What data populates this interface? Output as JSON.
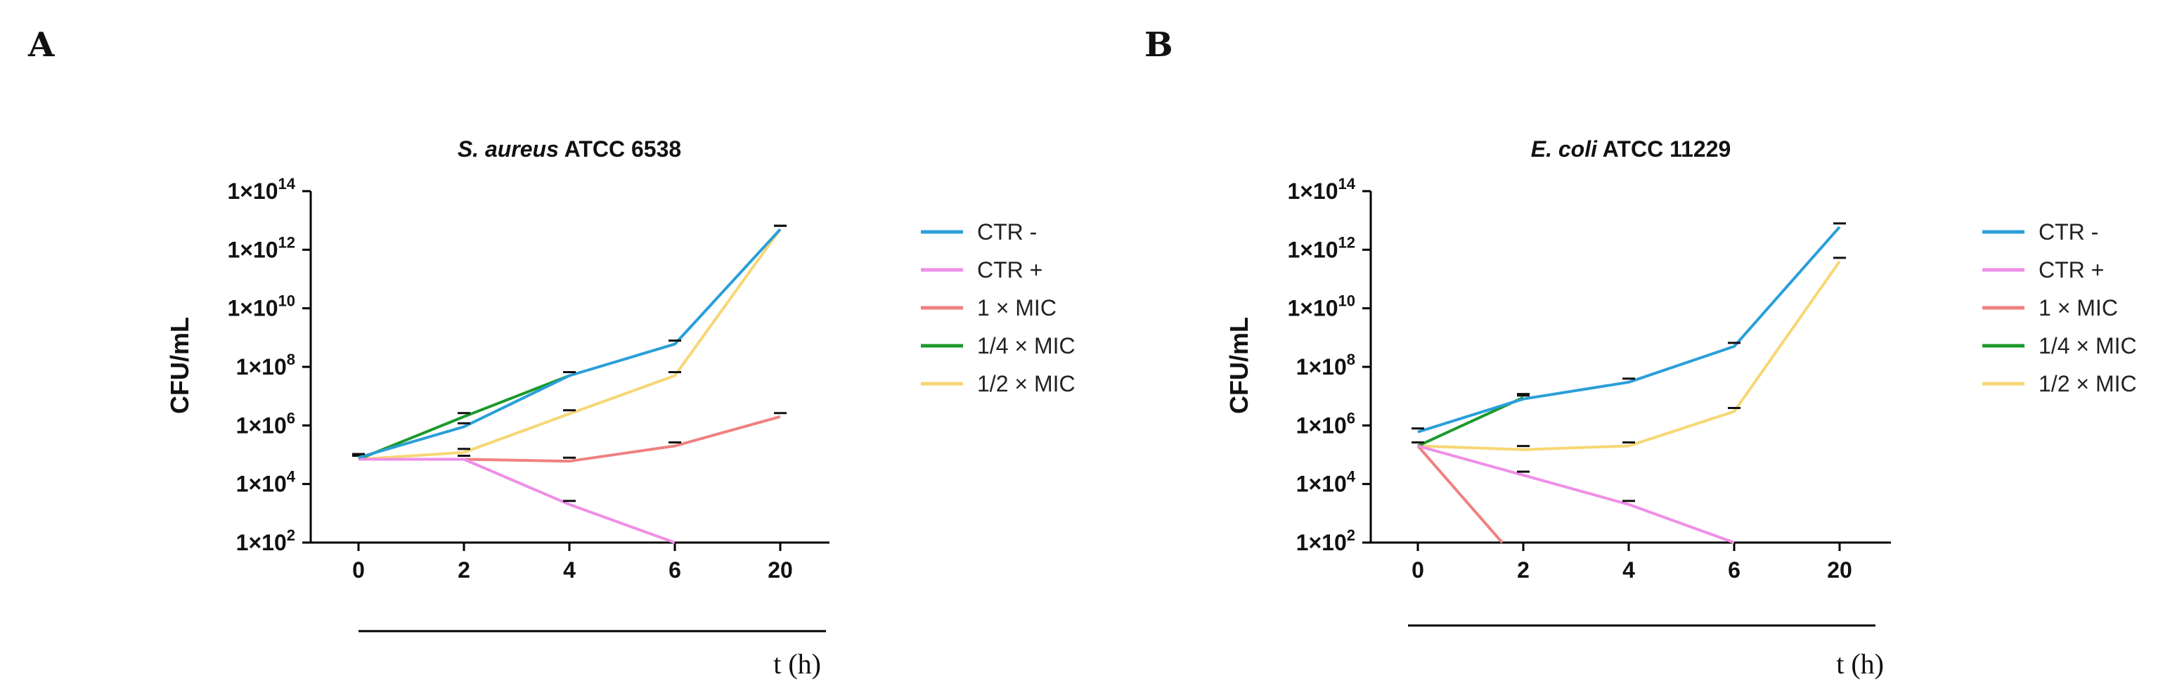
{
  "panel_labels": [
    "A",
    "B"
  ],
  "chart_data": [
    {
      "type": "line",
      "panel": "A",
      "title_italic": "S. aureus",
      "title_rest": " ATCC 6538",
      "xlabel": "t (h)",
      "ylabel": "CFU/mL",
      "yscale": "log",
      "ylim": [
        100,
        100000000000000
      ],
      "y_ticks": [
        {
          "base": "1×10",
          "exp": "2"
        },
        {
          "base": "1×10",
          "exp": "4"
        },
        {
          "base": "1×10",
          "exp": "6"
        },
        {
          "base": "1×10",
          "exp": "8"
        },
        {
          "base": "1×10",
          "exp": "10"
        },
        {
          "base": "1×10",
          "exp": "12"
        },
        {
          "base": "1×10",
          "exp": "14"
        }
      ],
      "categories": [
        "0",
        "2",
        "4",
        "6",
        "20"
      ],
      "series": [
        {
          "name": "CTR -",
          "color": "#2a9fd8",
          "values": [
            80000,
            900000,
            50000000,
            600000000,
            5000000000000
          ]
        },
        {
          "name": "CTR +",
          "color": "#ef8fe6",
          "values": [
            70000,
            70000,
            2000,
            100,
            null
          ]
        },
        {
          "name": "1 × MIC",
          "color": "#f08080",
          "values": [
            70000,
            70000,
            60000,
            200000,
            2000000
          ]
        },
        {
          "name": "1/4 × MIC",
          "color": "#1a9a2a",
          "values": [
            70000,
            2000000,
            50000000,
            null,
            null
          ]
        },
        {
          "name": "1/2 × MIC",
          "color": "#f7d774",
          "values": [
            70000,
            120000,
            2500000,
            50000000,
            5000000000000
          ]
        }
      ],
      "legend_position": "right"
    },
    {
      "type": "line",
      "panel": "B",
      "title_italic": "E. coli",
      "title_rest": " ATCC 11229",
      "xlabel": "t (h)",
      "ylabel": "CFU/mL",
      "yscale": "log",
      "ylim": [
        100,
        100000000000000
      ],
      "y_ticks": [
        {
          "base": "1×10",
          "exp": "2"
        },
        {
          "base": "1×10",
          "exp": "4"
        },
        {
          "base": "1×10",
          "exp": "6"
        },
        {
          "base": "1×10",
          "exp": "8"
        },
        {
          "base": "1×10",
          "exp": "10"
        },
        {
          "base": "1×10",
          "exp": "12"
        },
        {
          "base": "1×10",
          "exp": "14"
        }
      ],
      "categories": [
        "0",
        "2",
        "4",
        "6",
        "20"
      ],
      "series": [
        {
          "name": "CTR -",
          "color": "#2a9fd8",
          "values": [
            600000,
            8000000,
            30000000,
            500000000,
            6000000000000
          ]
        },
        {
          "name": "CTR +",
          "color": "#ef8fe6",
          "values": [
            200000,
            20000,
            2000,
            100,
            null
          ]
        },
        {
          "name": "1 × MIC",
          "color": "#f08080",
          "values": [
            200000,
            100,
            null,
            null,
            null
          ],
          "x_override": [
            0,
            0.8,
            null,
            null,
            null
          ]
        },
        {
          "name": "1/4 × MIC",
          "color": "#1a9a2a",
          "values": [
            200000,
            9000000,
            null,
            null,
            null
          ]
        },
        {
          "name": "1/2 × MIC",
          "color": "#f7d774",
          "values": [
            200000,
            150000,
            200000,
            3000000,
            400000000000
          ]
        }
      ],
      "legend_position": "right"
    }
  ]
}
